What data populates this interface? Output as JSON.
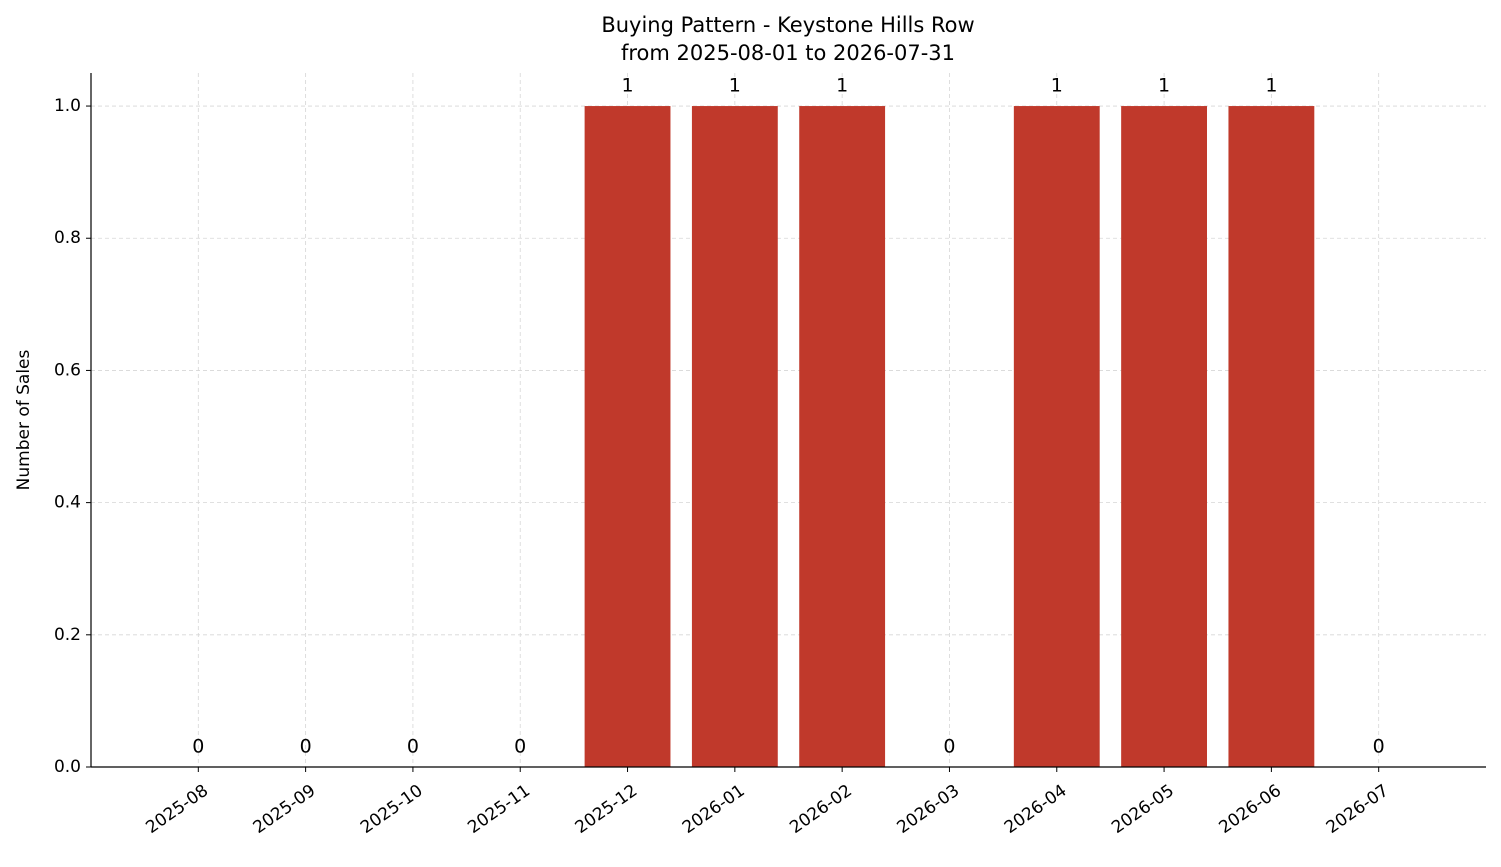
{
  "chart_data": {
    "type": "bar",
    "title": "Buying Pattern - Keystone Hills Row",
    "subtitle": "from 2025-08-01 to 2026-07-31",
    "y_label": "Number of Sales",
    "categories": [
      "2025-08",
      "2025-09",
      "2025-10",
      "2025-11",
      "2025-12",
      "2026-01",
      "2026-02",
      "2026-03",
      "2026-04",
      "2026-05",
      "2026-06",
      "2026-07"
    ],
    "values": [
      0,
      0,
      0,
      0,
      1,
      1,
      1,
      0,
      1,
      1,
      1,
      0
    ],
    "color": "#c0392b",
    "ylim": [
      0,
      1.05
    ],
    "yticks": [
      {
        "value": 0,
        "label": "0.0"
      },
      0.2,
      0.4,
      0.6,
      0.8,
      {
        "value": 1,
        "label": "1.0"
      }
    ],
    "grid": true
  }
}
